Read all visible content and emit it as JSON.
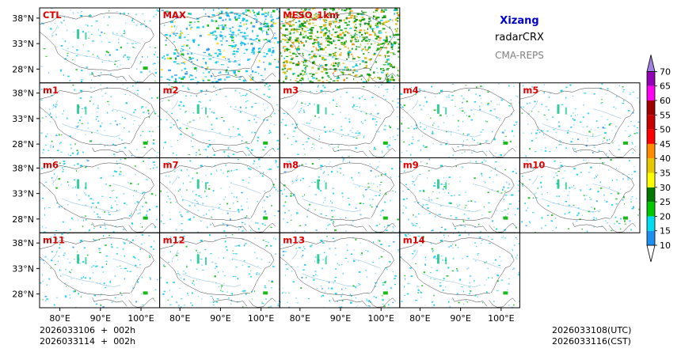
{
  "chart_data": {
    "type": "map-panel-grid",
    "region": "Xizang",
    "variable": "radarCRX",
    "system": "CMA-REPS",
    "panels": [
      {
        "label": "CTL",
        "row": 0,
        "col": 0,
        "style": "sparse"
      },
      {
        "label": "MAX",
        "row": 0,
        "col": 1,
        "style": "max"
      },
      {
        "label": "MESO_1km",
        "row": 0,
        "col": 2,
        "style": "meso"
      },
      {
        "label": "m1",
        "row": 1,
        "col": 0,
        "style": "sparse"
      },
      {
        "label": "m2",
        "row": 1,
        "col": 1,
        "style": "sparse"
      },
      {
        "label": "m3",
        "row": 1,
        "col": 2,
        "style": "sparse"
      },
      {
        "label": "m4",
        "row": 1,
        "col": 3,
        "style": "sparse"
      },
      {
        "label": "m5",
        "row": 1,
        "col": 4,
        "style": "sparse"
      },
      {
        "label": "m6",
        "row": 2,
        "col": 0,
        "style": "sparse"
      },
      {
        "label": "m7",
        "row": 2,
        "col": 1,
        "style": "sparse"
      },
      {
        "label": "m8",
        "row": 2,
        "col": 2,
        "style": "sparse"
      },
      {
        "label": "m9",
        "row": 2,
        "col": 3,
        "style": "sparse"
      },
      {
        "label": "m10",
        "row": 2,
        "col": 4,
        "style": "sparse"
      },
      {
        "label": "m11",
        "row": 3,
        "col": 0,
        "style": "sparse"
      },
      {
        "label": "m12",
        "row": 3,
        "col": 1,
        "style": "sparse"
      },
      {
        "label": "m13",
        "row": 3,
        "col": 2,
        "style": "sparse"
      },
      {
        "label": "m14",
        "row": 3,
        "col": 3,
        "style": "sparse"
      }
    ],
    "lat_ticks": [
      "38°N",
      "33°N",
      "28°N"
    ],
    "lat_values": [
      38,
      33,
      28
    ],
    "lon_ticks": [
      "80°E",
      "90°E",
      "100°E"
    ],
    "lon_values": [
      80,
      90,
      100
    ],
    "lon_range": [
      75,
      104.6
    ],
    "lat_range": [
      25.3,
      40
    ],
    "colorbar": {
      "levels": [
        "10",
        "15",
        "20",
        "25",
        "30",
        "35",
        "40",
        "45",
        "50",
        "55",
        "60",
        "65",
        "70"
      ],
      "colors": [
        "#ffffff",
        "#1e90f0",
        "#00dcf0",
        "#00c800",
        "#007800",
        "#ffff00",
        "#e6c800",
        "#ff8c00",
        "#ff0000",
        "#c80000",
        "#a00000",
        "#ff00f0",
        "#9600b4",
        "#a080e0"
      ]
    },
    "init_utc": "2026033106  +  002h",
    "init_cst": "2026033114  +  002h",
    "valid_utc": "2026033108(UTC)",
    "valid_cst": "2026033116(CST)"
  }
}
